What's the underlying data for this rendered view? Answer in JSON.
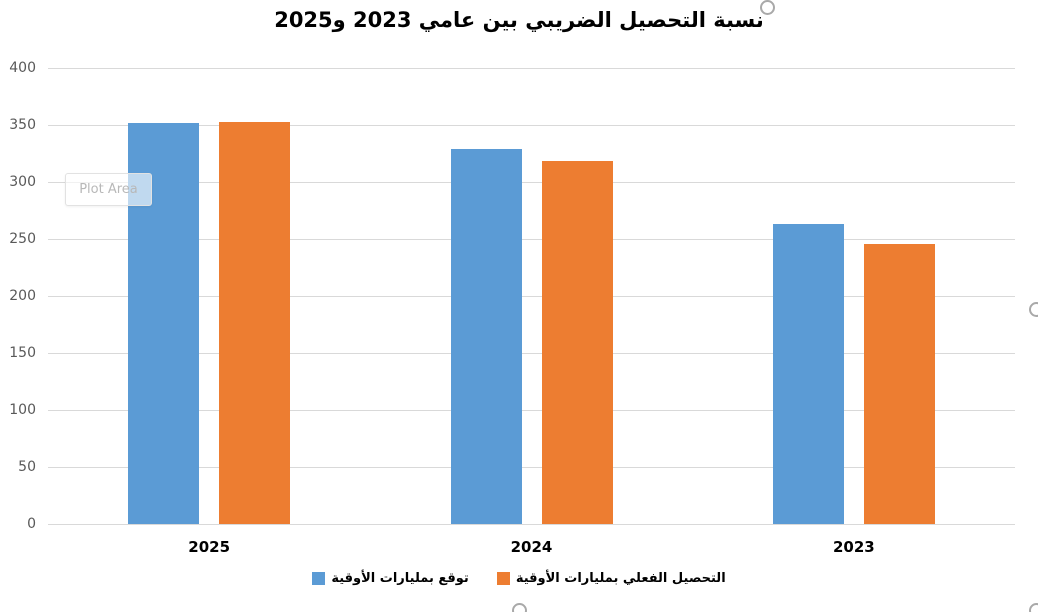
{
  "chart_data": {
    "type": "bar",
    "title": "نسبة التحصيل الضريبي بين عامي 2023 و2025",
    "direction": "rtl",
    "categories": [
      "2025",
      "2024",
      "2023"
    ],
    "series": [
      {
        "name": "توقع بمليارات الأوقية",
        "color": "#5B9BD5",
        "values": [
          352,
          329,
          263
        ]
      },
      {
        "name": "التحصيل الفعلي بمليارات الأوقية",
        "color": "#ED7D31",
        "values": [
          353,
          318,
          246
        ]
      }
    ],
    "ylim": [
      0,
      400
    ],
    "y_ticks": [
      0,
      50,
      100,
      150,
      200,
      250,
      300,
      350,
      400
    ],
    "xlabel": "",
    "ylabel": "",
    "grid": true,
    "legend_position": "bottom"
  },
  "editor": {
    "plot_area_label": "Plot Area"
  },
  "colors": {
    "grid": "#D9D9D9",
    "axis_text": "#595959",
    "category_text": "#000000",
    "title_text": "#000000",
    "handle_border": "#A9A9A9"
  }
}
